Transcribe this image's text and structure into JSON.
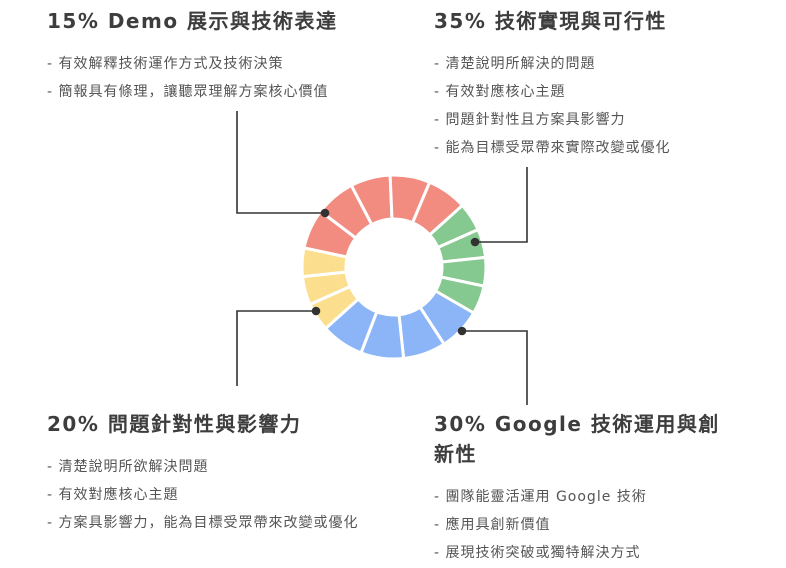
{
  "sections": {
    "tl": {
      "heading": "15% Demo 展示與技術表達",
      "bullets": [
        "- 有效解釋技術運作方式及技術決策",
        "- 簡報具有條理，讓聽眾理解方案核心價值"
      ]
    },
    "tr": {
      "heading": "35% 技術實現與可行性",
      "bullets": [
        "- 清楚說明所解決的問題",
        "- 有效對應核心主題",
        "- 問題針對性且方案具影響力",
        "- 能為目標受眾帶來實際改變或優化"
      ]
    },
    "bl": {
      "heading": "20% 問題針對性與影響力",
      "bullets": [
        "- 清楚說明所欲解決問題",
        "- 有效對應核心主題",
        "- 方案具影響力，能為目標受眾帶來改變或優化"
      ]
    },
    "br": {
      "heading": "30% Google 技術運用與創新性",
      "bullets": [
        "- 團隊能靈活運用 Google 技術",
        "- 應用具創新價值",
        "- 展現技術突破或獨特解決方式"
      ]
    }
  },
  "chart_data": {
    "type": "pie",
    "donut": true,
    "categories": [
      "Demo 展示與技術表達",
      "技術實現與可行性",
      "問題針對性與影響力",
      "Google 技術運用與創新性"
    ],
    "values": [
      15,
      35,
      20,
      30
    ],
    "colors": [
      "#fbdf8e",
      "#f28b80",
      "#85c991",
      "#8bb5f7"
    ],
    "segments_per_slice": [
      3,
      5,
      4,
      4
    ]
  }
}
